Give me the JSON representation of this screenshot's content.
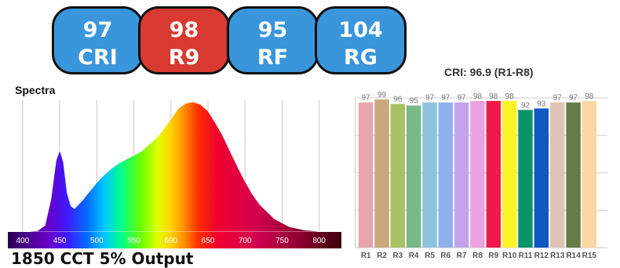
{
  "badges": [
    {
      "value": "97",
      "label": "CRI",
      "color": "#3a96db"
    },
    {
      "value": "98",
      "label": "R9",
      "color": "#d83a32"
    },
    {
      "value": "95",
      "label": "RF",
      "color": "#3a96db"
    },
    {
      "value": "104",
      "label": "RG",
      "color": "#3a96db"
    }
  ],
  "spectra_title": "Spectra",
  "bottom_title": "1850 CCT 5% Output",
  "chart_data": [
    {
      "type": "area",
      "title": "Spectra",
      "x_ticks": [
        400,
        450,
        500,
        550,
        600,
        650,
        700,
        750,
        800
      ],
      "xlim": [
        380,
        830
      ],
      "ylim": [
        0,
        1.0
      ],
      "x": [
        380,
        400,
        420,
        430,
        438,
        445,
        450,
        455,
        460,
        465,
        470,
        480,
        490,
        500,
        510,
        520,
        530,
        540,
        550,
        560,
        570,
        580,
        590,
        600,
        610,
        620,
        630,
        640,
        650,
        660,
        670,
        680,
        690,
        700,
        710,
        720,
        740,
        760,
        780,
        800,
        830
      ],
      "y": [
        0,
        0,
        0.01,
        0.05,
        0.25,
        0.55,
        0.63,
        0.54,
        0.3,
        0.2,
        0.18,
        0.24,
        0.31,
        0.38,
        0.44,
        0.49,
        0.53,
        0.56,
        0.59,
        0.62,
        0.67,
        0.72,
        0.79,
        0.87,
        0.95,
        0.99,
        1.0,
        0.98,
        0.93,
        0.84,
        0.74,
        0.62,
        0.5,
        0.39,
        0.29,
        0.21,
        0.1,
        0.04,
        0.015,
        0.005,
        0
      ]
    },
    {
      "type": "bar",
      "title": "CRI: 96.9 (R1-R8)",
      "ylim": [
        0,
        100
      ],
      "grid": true,
      "categories": [
        "R1",
        "R2",
        "R3",
        "R4",
        "R5",
        "R6",
        "R7",
        "R8",
        "R9",
        "R10",
        "R11",
        "R12",
        "R13",
        "R14",
        "R15"
      ],
      "values": [
        97,
        99,
        96,
        95,
        97,
        97,
        97,
        98,
        98,
        98,
        92,
        93,
        97,
        97,
        98
      ],
      "colors": [
        "#e7a6ae",
        "#c9a87e",
        "#a9c162",
        "#78b889",
        "#8ec2dd",
        "#8eb0ec",
        "#c3a4ec",
        "#e9a3de",
        "#ee1b4a",
        "#fcf225",
        "#0c9468",
        "#0f58c2",
        "#dfc2b6",
        "#677b45",
        "#fad7a3"
      ]
    }
  ]
}
